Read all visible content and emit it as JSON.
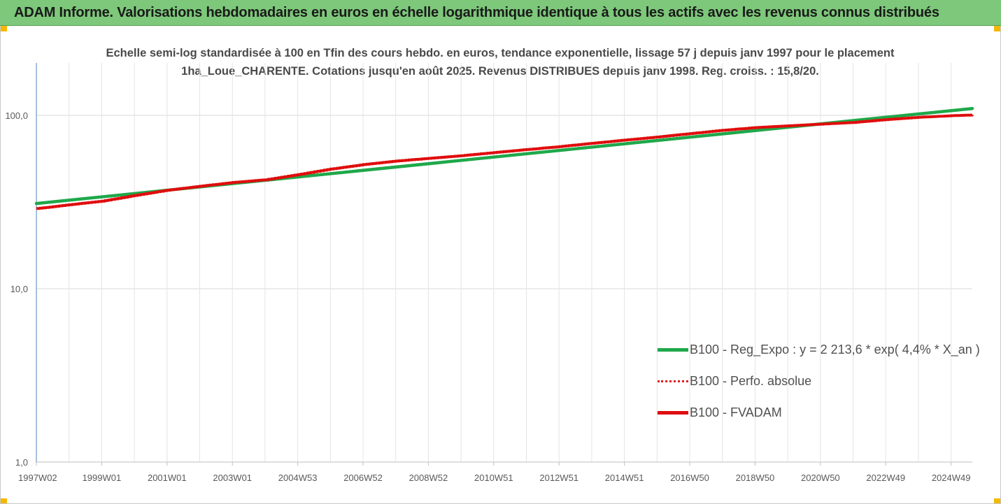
{
  "header": {
    "title": "ADAM Informe. Valorisations hebdomadaires en euros en échelle logarithmique identique à tous les actifs avec les revenus connus distribués",
    "background": "#7dc87a"
  },
  "chart_data": {
    "type": "line",
    "title": "Echelle semi-log standardisée à 100 en Tfin des cours hebdo. en euros, tendance exponentielle, lissage 57 j depuis janv 1997 pour le placement 1ha_Loue_CHARENTE. Cotations jusqu'en août 2025. Revenus DISTRIBUES depuis janv 1998. Reg. croiss. : 15,8/20.",
    "xlabel": "",
    "ylabel": "",
    "y_scale": "log",
    "ylim": [
      1,
      200
    ],
    "xlim": [
      1997.0,
      2025.65
    ],
    "y_ticks": [
      {
        "value": 1,
        "label": "1,0"
      },
      {
        "value": 10,
        "label": "10,0"
      },
      {
        "value": 100,
        "label": "100,0"
      }
    ],
    "x_ticks": [
      {
        "value": 1997.0,
        "label": "1997W02"
      },
      {
        "value": 1999.0,
        "label": "1999W01"
      },
      {
        "value": 2001.0,
        "label": "2001W01"
      },
      {
        "value": 2003.0,
        "label": "2003W01"
      },
      {
        "value": 2005.0,
        "label": "2004W53"
      },
      {
        "value": 2007.0,
        "label": "2006W52"
      },
      {
        "value": 2009.0,
        "label": "2008W52"
      },
      {
        "value": 2011.0,
        "label": "2010W51"
      },
      {
        "value": 2013.0,
        "label": "2012W51"
      },
      {
        "value": 2015.0,
        "label": "2014W51"
      },
      {
        "value": 2017.0,
        "label": "2016W50"
      },
      {
        "value": 2019.0,
        "label": "2018W50"
      },
      {
        "value": 2021.0,
        "label": "2020W50"
      },
      {
        "value": 2023.0,
        "label": "2022W49"
      },
      {
        "value": 2025.0,
        "label": "2024W49"
      }
    ],
    "grid": "vertical",
    "legend_position": "bottom-right",
    "series": [
      {
        "name": "B100 - Reg_Expo : y = 2 213,6 * exp( 4,4% *  X_an )",
        "color": "#1fa84a",
        "style": "solid",
        "x": [
          1997.0,
          2025.65
        ],
        "y": [
          31.0,
          109.5
        ]
      },
      {
        "name": "B100 - Perfo. absolue",
        "color": "#e02020",
        "style": "dotted",
        "x": [],
        "y": []
      },
      {
        "name": "B100 - FVADAM",
        "color": "#e00d0d",
        "style": "solid",
        "x": [
          1997.0,
          1998.0,
          1999.0,
          2000.0,
          2001.0,
          2002.0,
          2003.0,
          2004.0,
          2005.0,
          2006.0,
          2007.0,
          2008.0,
          2009.0,
          2010.0,
          2011.0,
          2012.0,
          2013.0,
          2014.0,
          2015.0,
          2016.0,
          2017.0,
          2018.0,
          2019.0,
          2020.0,
          2021.0,
          2022.0,
          2023.0,
          2024.0,
          2025.0,
          2025.65
        ],
        "y": [
          29.0,
          30.5,
          32.0,
          34.5,
          37.0,
          39.0,
          41.0,
          42.5,
          45.5,
          49.0,
          52.0,
          54.5,
          56.5,
          58.5,
          61.0,
          63.5,
          66.0,
          69.0,
          72.0,
          75.0,
          78.5,
          82.0,
          85.0,
          87.0,
          89.0,
          91.0,
          94.5,
          97.5,
          99.5,
          100.5
        ]
      }
    ]
  }
}
